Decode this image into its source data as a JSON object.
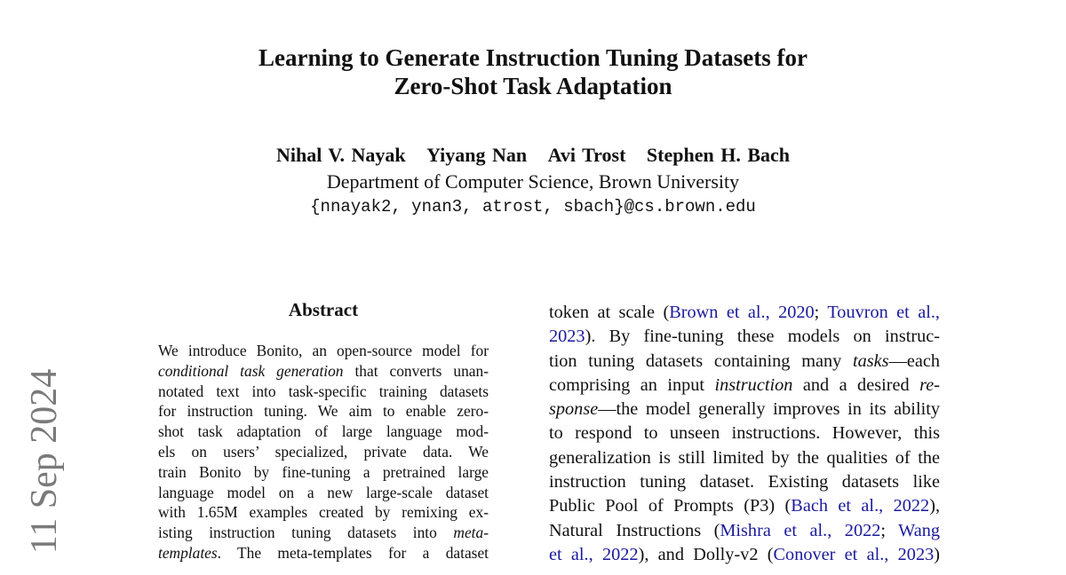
{
  "arxiv_date": "11 Sep 2024",
  "title": [
    "Learning to Generate Instruction Tuning Datasets for",
    "Zero-Shot Task Adaptation"
  ],
  "authors": [
    "Nihal V. Nayak",
    "Yiyang Nan",
    "Avi Trost",
    "Stephen H. Bach"
  ],
  "affiliation": "Department of Computer Science, Brown University",
  "email": "{nnayak2, ynan3, atrost, sbach}@cs.brown.edu",
  "abstract_heading": "Abstract",
  "abstract_lines": [
    [
      {
        "t": "We introduce Bonito, an open-source model for"
      }
    ],
    [
      {
        "t": "conditional task generation",
        "s": "i"
      },
      {
        "t": " that converts unan-"
      }
    ],
    [
      {
        "t": "notated text into task-specific training datasets"
      }
    ],
    [
      {
        "t": "for instruction tuning. We aim to enable zero-"
      }
    ],
    [
      {
        "t": "shot task adaptation of large language mod-"
      }
    ],
    [
      {
        "t": "els on users’ specialized, private data.  We"
      }
    ],
    [
      {
        "t": "train Bonito by fine-tuning a pretrained large"
      }
    ],
    [
      {
        "t": "language model on a new large-scale dataset"
      }
    ],
    [
      {
        "t": "with 1.65M examples created by remixing ex-"
      }
    ],
    [
      {
        "t": "isting instruction tuning datasets into "
      },
      {
        "t": "meta-",
        "s": "i"
      }
    ],
    [
      {
        "t": "templates",
        "s": "i"
      },
      {
        "t": ".  The meta-templates for a dataset"
      }
    ]
  ],
  "intro_lines": [
    [
      {
        "t": "token at scale ("
      },
      {
        "t": "Brown et al., 2020",
        "s": "c"
      },
      {
        "t": "; "
      },
      {
        "t": "Touvron et al.,",
        "s": "c"
      }
    ],
    [
      {
        "t": "2023",
        "s": "c"
      },
      {
        "t": ").  By fine-tuning these models on instruc-"
      }
    ],
    [
      {
        "t": "tion tuning datasets containing many "
      },
      {
        "t": "tasks",
        "s": "i"
      },
      {
        "t": "—each"
      }
    ],
    [
      {
        "t": "comprising an input "
      },
      {
        "t": "instruction",
        "s": "i"
      },
      {
        "t": " and a desired "
      },
      {
        "t": "re-",
        "s": "i"
      }
    ],
    [
      {
        "t": "sponse",
        "s": "i"
      },
      {
        "t": "—the model generally improves in its ability"
      }
    ],
    [
      {
        "t": "to respond to unseen instructions.  However, this"
      }
    ],
    [
      {
        "t": "generalization is still limited by the qualities of the"
      }
    ],
    [
      {
        "t": "instruction tuning dataset.  Existing datasets like"
      }
    ],
    [
      {
        "t": "Public Pool of Prompts (P3) ("
      },
      {
        "t": "Bach et al., 2022",
        "s": "c"
      },
      {
        "t": "),"
      }
    ],
    [
      {
        "t": "Natural Instructions ("
      },
      {
        "t": "Mishra et al., 2022",
        "s": "c"
      },
      {
        "t": "; "
      },
      {
        "t": "Wang",
        "s": "c"
      }
    ],
    [
      {
        "t": "et al., 2022",
        "s": "c"
      },
      {
        "t": "), and Dolly-v2 ("
      },
      {
        "t": "Conover et al., 2023",
        "s": "c"
      },
      {
        "t": ")"
      }
    ]
  ]
}
